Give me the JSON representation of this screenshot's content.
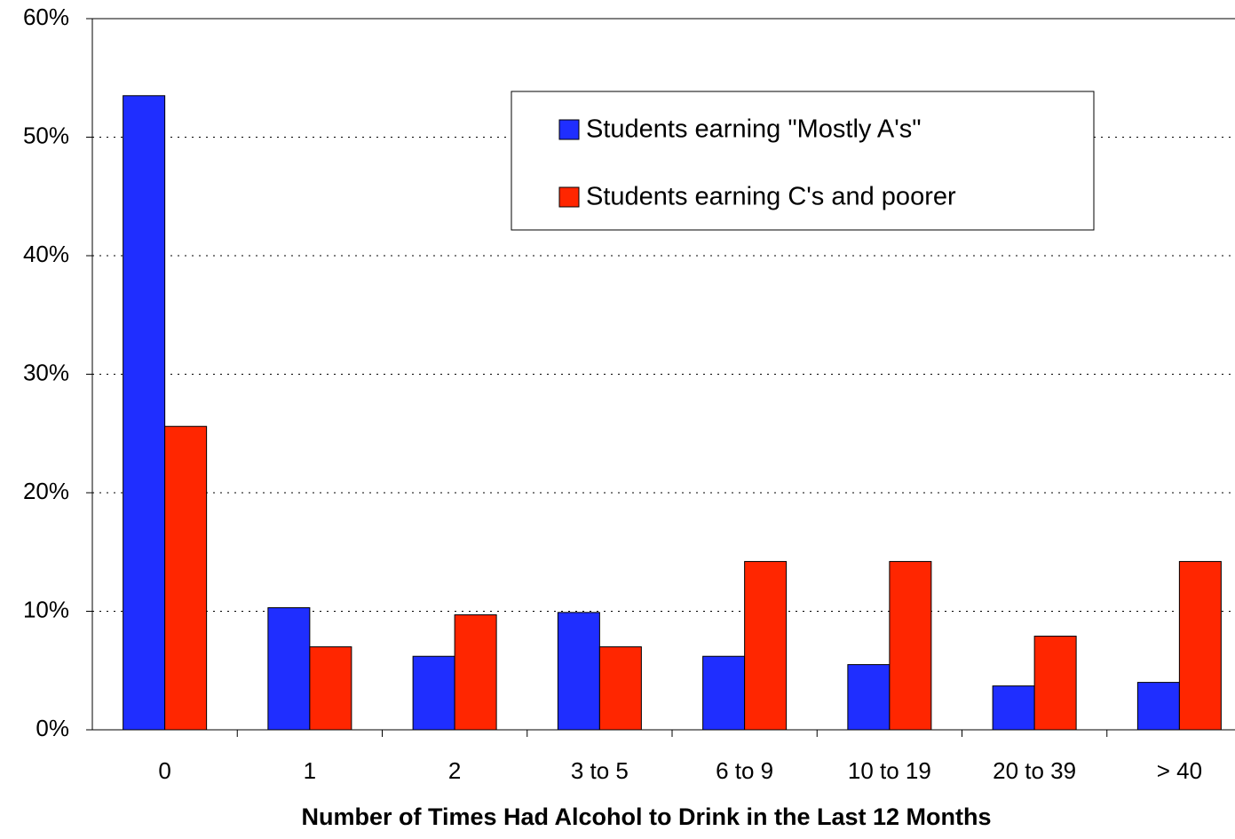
{
  "chart_data": {
    "type": "bar",
    "x_label": "Number of Times Had Alcohol to Drink in the Last 12 Months",
    "categories": [
      "0",
      "1",
      "2",
      "3 to 5",
      "6 to 9",
      "10 to 19",
      "20 to 39",
      "> 40"
    ],
    "series": [
      {
        "name": "Students earning \"Mostly A's\"",
        "color": "#1f2eff",
        "values": [
          53.5,
          10.3,
          6.2,
          9.9,
          6.2,
          5.5,
          3.7,
          4.0
        ]
      },
      {
        "name": "Students earning C's and poorer",
        "color": "#ff2600",
        "values": [
          25.6,
          7.0,
          9.7,
          7.0,
          14.2,
          14.2,
          7.9,
          14.2
        ]
      }
    ],
    "ylim": [
      0,
      60
    ],
    "yticks": [
      {
        "value": 0,
        "label": "0%"
      },
      {
        "value": 10,
        "label": "10%"
      },
      {
        "value": 20,
        "label": "20%"
      },
      {
        "value": 30,
        "label": "30%"
      },
      {
        "value": 40,
        "label": "40%"
      },
      {
        "value": 50,
        "label": "50%"
      },
      {
        "value": 60,
        "label": "60%"
      }
    ],
    "grid": true,
    "legend": "top-right"
  }
}
